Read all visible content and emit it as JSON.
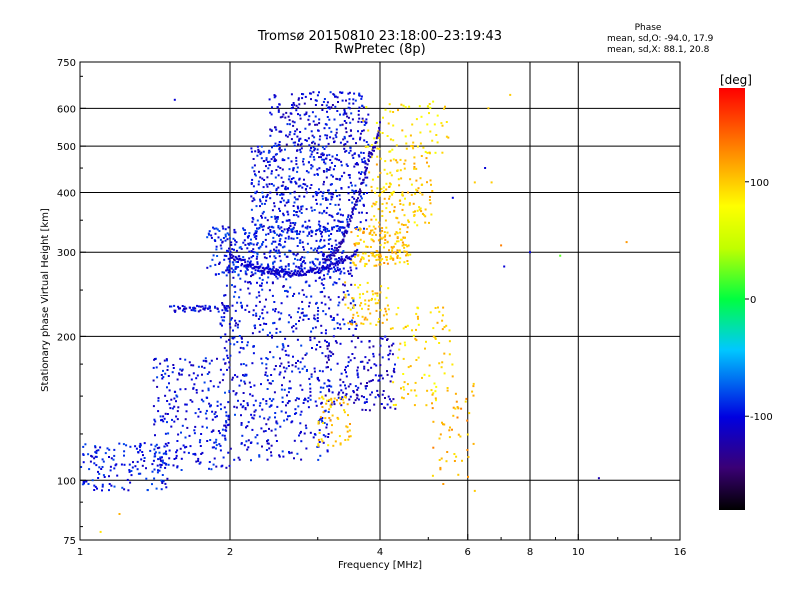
{
  "chart_data": {
    "type": "scatter",
    "title": "Tromsø 20150810 23:18:00–23:19:43",
    "subtitle": "RwPretec (8p)",
    "xlabel": "Frequency [MHz]",
    "ylabel": "Stationary phase Virtual Height [km]",
    "x_scale": "log",
    "y_scale": "log",
    "xlim": [
      1,
      16
    ],
    "ylim": [
      75,
      750
    ],
    "x_ticks": [
      1,
      2,
      4,
      6,
      8,
      10,
      16
    ],
    "x_tick_labels": [
      "1",
      "2",
      "4",
      "6",
      "8",
      "10",
      "16"
    ],
    "x_grid": [
      2,
      4,
      6,
      8,
      10
    ],
    "y_ticks": [
      75,
      100,
      200,
      300,
      400,
      500,
      600,
      750
    ],
    "y_tick_labels": [
      "75",
      "100",
      "200",
      "300",
      "400",
      "500",
      "600",
      "750"
    ],
    "y_grid": [
      100,
      200,
      300,
      400,
      500,
      600
    ],
    "grid": true,
    "stats": {
      "header": "Phase",
      "line_o": "mean, sd,O:  -94.0, 17.9",
      "line_x": "mean, sd,X:  88.1, 20.8"
    },
    "colorbar": {
      "label": "[deg]",
      "range": [
        -180,
        180
      ],
      "ticks": [
        100,
        0,
        -100
      ],
      "tick_labels": [
        "100",
        "0",
        "-100"
      ],
      "colormap": "rainbow"
    },
    "clusters": [
      {
        "x": [
          1.0,
          1.5
        ],
        "y": [
          95,
          120
        ],
        "n": 160,
        "phase": -95
      },
      {
        "x": [
          1.4,
          2.0
        ],
        "y": [
          105,
          180
        ],
        "n": 240,
        "phase": -100
      },
      {
        "x": [
          1.5,
          2.0
        ],
        "y": [
          225,
          232
        ],
        "n": 60,
        "phase": -105
      },
      {
        "x": [
          1.9,
          3.2
        ],
        "y": [
          110,
          200
        ],
        "n": 360,
        "phase": -100
      },
      {
        "x": [
          1.9,
          3.6
        ],
        "y": [
          200,
          290
        ],
        "n": 300,
        "phase": -100
      },
      {
        "x": [
          1.8,
          3.4
        ],
        "y": [
          268,
          340
        ],
        "n": 420,
        "phase": -95
      },
      {
        "x": [
          2.2,
          3.8
        ],
        "y": [
          330,
          500
        ],
        "n": 500,
        "phase": -100
      },
      {
        "x": [
          2.4,
          3.8
        ],
        "y": [
          500,
          650
        ],
        "n": 240,
        "phase": -105
      },
      {
        "x": [
          3.1,
          4.3
        ],
        "y": [
          140,
          200
        ],
        "n": 160,
        "phase": -110
      },
      {
        "x": [
          3.0,
          3.5
        ],
        "y": [
          118,
          150
        ],
        "n": 60,
        "phase": 100
      },
      {
        "x": [
          3.5,
          4.6
        ],
        "y": [
          280,
          340
        ],
        "n": 160,
        "phase": 105
      },
      {
        "x": [
          3.8,
          5.1
        ],
        "y": [
          340,
          480
        ],
        "n": 140,
        "phase": 100
      },
      {
        "x": [
          3.4,
          4.2
        ],
        "y": [
          210,
          260
        ],
        "n": 70,
        "phase": 100
      },
      {
        "x": [
          4.2,
          5.7
        ],
        "y": [
          140,
          230
        ],
        "n": 90,
        "phase": 95
      },
      {
        "x": [
          3.7,
          5.5
        ],
        "y": [
          480,
          620
        ],
        "n": 80,
        "phase": 90
      },
      {
        "x": [
          5.0,
          6.2
        ],
        "y": [
          96,
          160
        ],
        "n": 50,
        "phase": 110
      }
    ],
    "arcs": [
      {
        "x": [
          2.0,
          3.6
        ],
        "y_min": 270,
        "y_max": 300,
        "peak_x": 2.65,
        "n": 160,
        "phase": -110
      },
      {
        "x": [
          3.1,
          3.8
        ],
        "y_min": 290,
        "y_max": 470,
        "n": 70,
        "phase": -120
      },
      {
        "x": [
          3.8,
          4.0
        ],
        "y_min": 480,
        "y_max": 555,
        "n": 25,
        "phase": -120
      }
    ],
    "sparse": [
      {
        "x": 5.6,
        "y": 390,
        "phase": -100
      },
      {
        "x": 6.2,
        "y": 420,
        "phase": 100
      },
      {
        "x": 6.7,
        "y": 420,
        "phase": 100
      },
      {
        "x": 6.5,
        "y": 450,
        "phase": -105
      },
      {
        "x": 7.0,
        "y": 310,
        "phase": 130
      },
      {
        "x": 7.1,
        "y": 280,
        "phase": -105
      },
      {
        "x": 8.0,
        "y": 300,
        "phase": -100
      },
      {
        "x": 9.2,
        "y": 295,
        "phase": 20
      },
      {
        "x": 11.0,
        "y": 101,
        "phase": -120
      },
      {
        "x": 6.2,
        "y": 95,
        "phase": 100
      },
      {
        "x": 7.3,
        "y": 640,
        "phase": 100
      },
      {
        "x": 1.55,
        "y": 625,
        "phase": -105
      },
      {
        "x": 6.6,
        "y": 600,
        "phase": 100
      },
      {
        "x": 12.5,
        "y": 315,
        "phase": 120
      },
      {
        "x": 1.2,
        "y": 85,
        "phase": 110
      },
      {
        "x": 1.1,
        "y": 78,
        "phase": 90
      }
    ]
  }
}
